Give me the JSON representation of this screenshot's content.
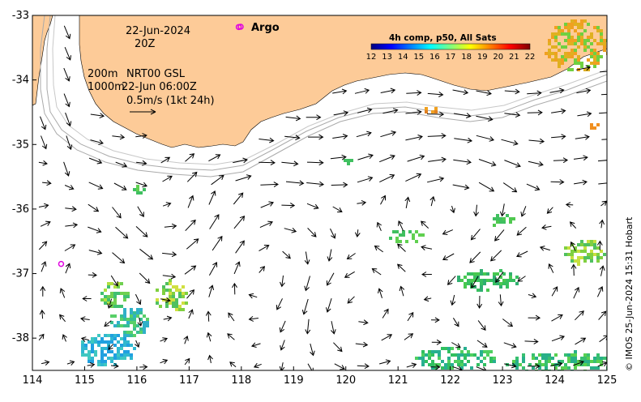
{
  "map": {
    "lon_range": [
      114,
      125
    ],
    "lat_range": [
      -38.5,
      -33
    ],
    "x_ticks": [
      "114",
      "115",
      "116",
      "117",
      "118",
      "119",
      "120",
      "121",
      "122",
      "123",
      "124",
      "125"
    ],
    "y_ticks": [
      "-33",
      "-34",
      "-35",
      "-36",
      "-37",
      "-38"
    ],
    "land_color": "#fdcb98",
    "frame_color": "#000000",
    "grid": false
  },
  "annotations": {
    "date": "22-Jun-2024",
    "time": "20Z",
    "isobath_200": "200m",
    "isobath_1000": "1000m",
    "product": "NRT00 GSL",
    "altimetry_time": "22-Jun 06:00Z",
    "scale_arrow_label": "0.5m/s (1kt 24h)"
  },
  "legend": {
    "argo_label": "Argo",
    "argo_color": "#e000e0",
    "argo_floats": [
      {
        "lon": 117.95,
        "lat": -33.18
      },
      {
        "lon": 114.55,
        "lat": -36.85
      }
    ]
  },
  "colorbar": {
    "title": "4h comp, p50, All Sats",
    "labels": [
      "12",
      "13",
      "14",
      "15",
      "16",
      "17",
      "18",
      "19",
      "20",
      "21",
      "22"
    ],
    "min": 12,
    "max": 22,
    "colors": [
      "#00007f",
      "#0000ff",
      "#007fff",
      "#00ffff",
      "#7fff7f",
      "#ffff00",
      "#ff7f00",
      "#ff0000",
      "#7f0000"
    ]
  },
  "credit": "© IMOS 25-Jun-2024 15:31 Hobart"
}
